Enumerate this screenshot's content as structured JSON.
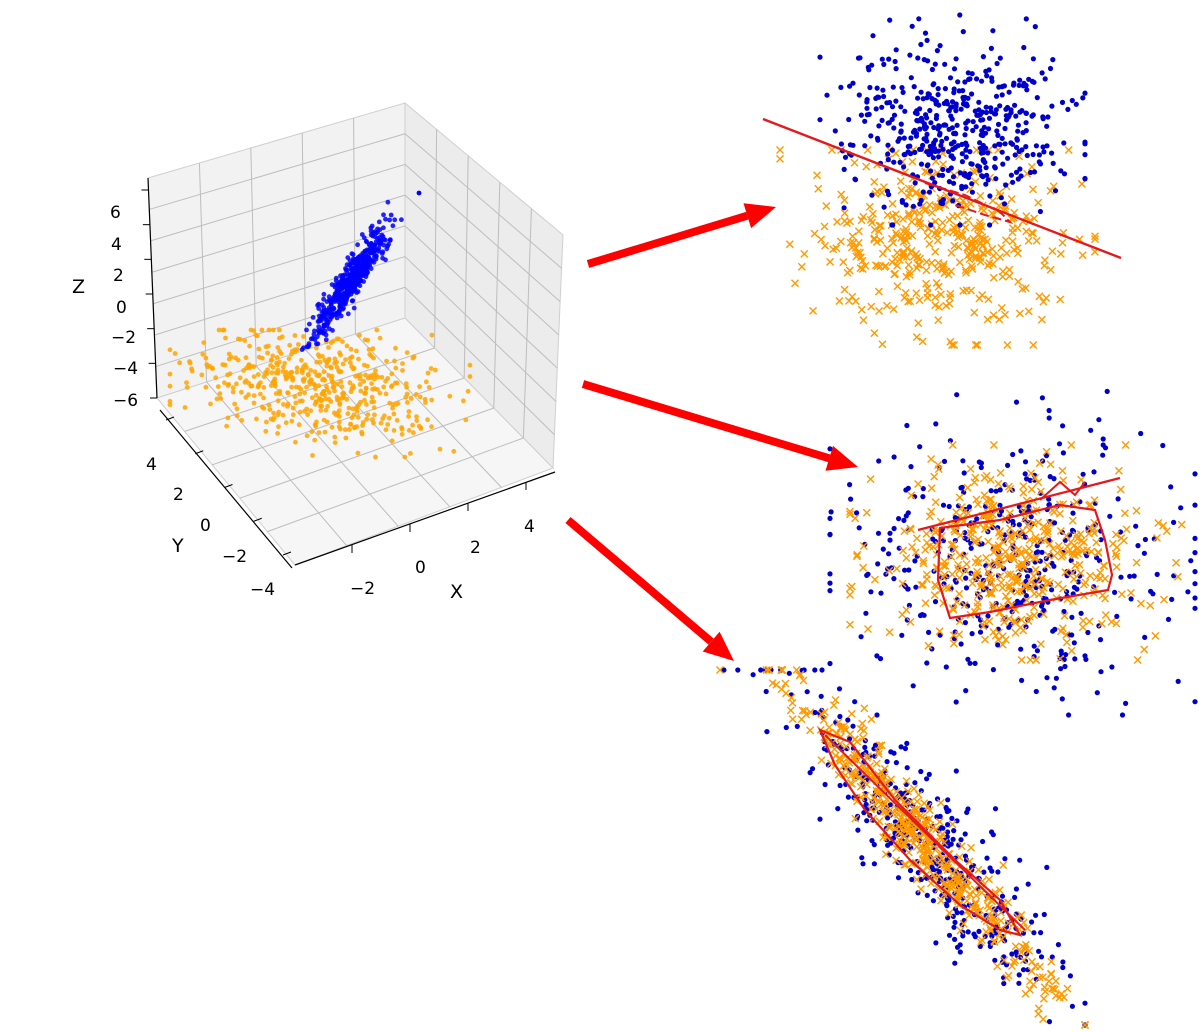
{
  "chart_data": [
    {
      "type": "scatter",
      "projection": "3d",
      "title": "",
      "xlabel": "X",
      "ylabel": "Y",
      "zlabel": "Z",
      "x_ticks": [
        "−2",
        "0",
        "2",
        "4"
      ],
      "y_ticks": [
        "−4",
        "−2",
        "0",
        "2",
        "4"
      ],
      "z_ticks": [
        "−6",
        "−4",
        "−2",
        "0",
        "2",
        "4",
        "6"
      ],
      "xlim": [
        -3.5,
        5.5
      ],
      "ylim": [
        -4.5,
        5
      ],
      "zlim": [
        -7,
        7.5
      ],
      "grid": true,
      "legend": "none",
      "series": [
        {
          "marker": "dot",
          "color": "#0000ff",
          "count": 500,
          "shape": "elongated diagonal cluster rising from z≈-2 to z≈6"
        },
        {
          "marker": "dot",
          "color": "#ffa500",
          "count": 500,
          "shape": "flat disc spread at z≈-4"
        }
      ]
    },
    {
      "type": "scatter",
      "title": "",
      "panel": "projection-1",
      "decision_boundary": "straight line separating the classes",
      "series": [
        {
          "marker": "dot",
          "color": "#0000cc",
          "shape": "cluster above the boundary line"
        },
        {
          "marker": "x",
          "color": "#ff9900",
          "shape": "cluster below the boundary line"
        }
      ]
    },
    {
      "type": "scatter",
      "title": "",
      "panel": "projection-2",
      "decision_boundary": "closed polygon loop around the overlap",
      "series": [
        {
          "marker": "dot",
          "color": "#0000cc",
          "shape": "wide cloud"
        },
        {
          "marker": "x",
          "color": "#ff9900",
          "shape": "wide cloud, fully overlapping"
        }
      ]
    },
    {
      "type": "scatter",
      "title": "",
      "panel": "projection-3",
      "decision_boundary": "narrow elongated polygon along the diagonal",
      "series": [
        {
          "marker": "dot",
          "color": "#0000cc",
          "shape": "diagonal elongated cloud"
        },
        {
          "marker": "x",
          "color": "#ff9900",
          "shape": "diagonal elongated cloud, fully overlapping"
        }
      ]
    }
  ],
  "arrows": {
    "color": "#ff0000",
    "count": 3
  }
}
